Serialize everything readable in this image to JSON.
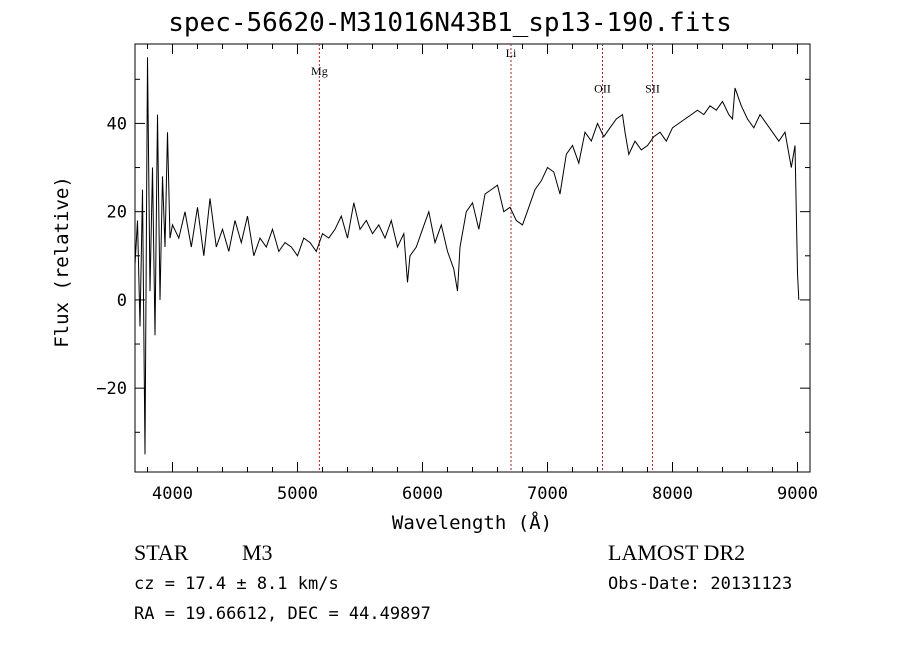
{
  "chart_data": {
    "type": "line",
    "title": "spec-56620-M31016N43B1_sp13-190.fits",
    "xlabel": "Wavelength (Å)",
    "ylabel": "Flux (relative)",
    "xlim": [
      3700,
      9100
    ],
    "ylim": [
      -39,
      58
    ],
    "x_ticks": [
      4000,
      5000,
      6000,
      7000,
      8000,
      9000
    ],
    "x_tick_labels": [
      "4000",
      "5000",
      "6000",
      "7000",
      "8000",
      "9000"
    ],
    "y_ticks": [
      -20,
      0,
      20,
      40
    ],
    "y_tick_labels": [
      "−20",
      "0",
      "20",
      "40"
    ],
    "grid": false,
    "line_color": "#000000",
    "marker_color": "#b22222",
    "lines": [
      {
        "name": "Mg",
        "x": 5175,
        "label_y": 51
      },
      {
        "name": "Li",
        "x": 6708,
        "label_y": 55
      },
      {
        "name": "OII",
        "x": 7440,
        "label_y": 47
      },
      {
        "name": "SII",
        "x": 7840,
        "label_y": 47
      }
    ],
    "series": [
      {
        "x": [
          3700,
          3720,
          3740,
          3760,
          3780,
          3800,
          3820,
          3840,
          3860,
          3880,
          3900,
          3920,
          3940,
          3960,
          3980,
          4000,
          4050,
          4100,
          4150,
          4200,
          4250,
          4300,
          4350,
          4400,
          4450,
          4500,
          4550,
          4600,
          4650,
          4700,
          4750,
          4800,
          4850,
          4900,
          4950,
          5000,
          5050,
          5100,
          5150,
          5200,
          5250,
          5300,
          5350,
          5400,
          5450,
          5500,
          5550,
          5600,
          5650,
          5700,
          5750,
          5800,
          5850,
          5880,
          5900,
          5950,
          6000,
          6050,
          6100,
          6150,
          6200,
          6250,
          6280,
          6300,
          6350,
          6400,
          6450,
          6500,
          6550,
          6600,
          6650,
          6700,
          6750,
          6800,
          6850,
          6900,
          6950,
          7000,
          7050,
          7100,
          7150,
          7200,
          7250,
          7300,
          7350,
          7400,
          7450,
          7500,
          7550,
          7600,
          7620,
          7650,
          7700,
          7750,
          7800,
          7850,
          7900,
          7950,
          8000,
          8050,
          8100,
          8150,
          8200,
          8250,
          8300,
          8350,
          8400,
          8450,
          8480,
          8500,
          8550,
          8600,
          8650,
          8700,
          8750,
          8800,
          8850,
          8900,
          8950,
          8980,
          8990,
          9000,
          9010
        ],
        "y": [
          8,
          18,
          -6,
          25,
          -35,
          55,
          2,
          30,
          -8,
          42,
          0,
          28,
          12,
          38,
          14,
          17,
          14,
          20,
          12,
          21,
          10,
          23,
          12,
          16,
          11,
          18,
          13,
          19,
          10,
          14,
          12,
          16,
          11,
          13,
          12,
          10,
          14,
          13,
          11,
          15,
          14,
          16,
          19,
          14,
          22,
          16,
          18,
          15,
          17,
          14,
          18,
          12,
          15,
          4,
          10,
          12,
          16,
          20,
          13,
          17,
          11,
          7,
          2,
          12,
          20,
          22,
          16,
          24,
          25,
          26,
          20,
          21,
          18,
          17,
          21,
          25,
          27,
          30,
          29,
          24,
          33,
          35,
          31,
          38,
          36,
          40,
          37,
          39,
          41,
          42,
          38,
          33,
          36,
          34,
          35,
          37,
          38,
          36,
          39,
          40,
          41,
          42,
          43,
          42,
          44,
          43,
          45,
          42,
          41,
          48,
          44,
          41,
          39,
          42,
          40,
          38,
          36,
          38,
          30,
          35,
          20,
          6,
          0
        ]
      }
    ]
  },
  "footer": {
    "object_type": "STAR",
    "subclass": "M3",
    "survey": "LAMOST DR2",
    "cz": "cz = 17.4 ± 8.1 km/s",
    "obs_date": "Obs-Date: 20131123",
    "coords": "RA =  19.66612, DEC =  44.49897"
  }
}
